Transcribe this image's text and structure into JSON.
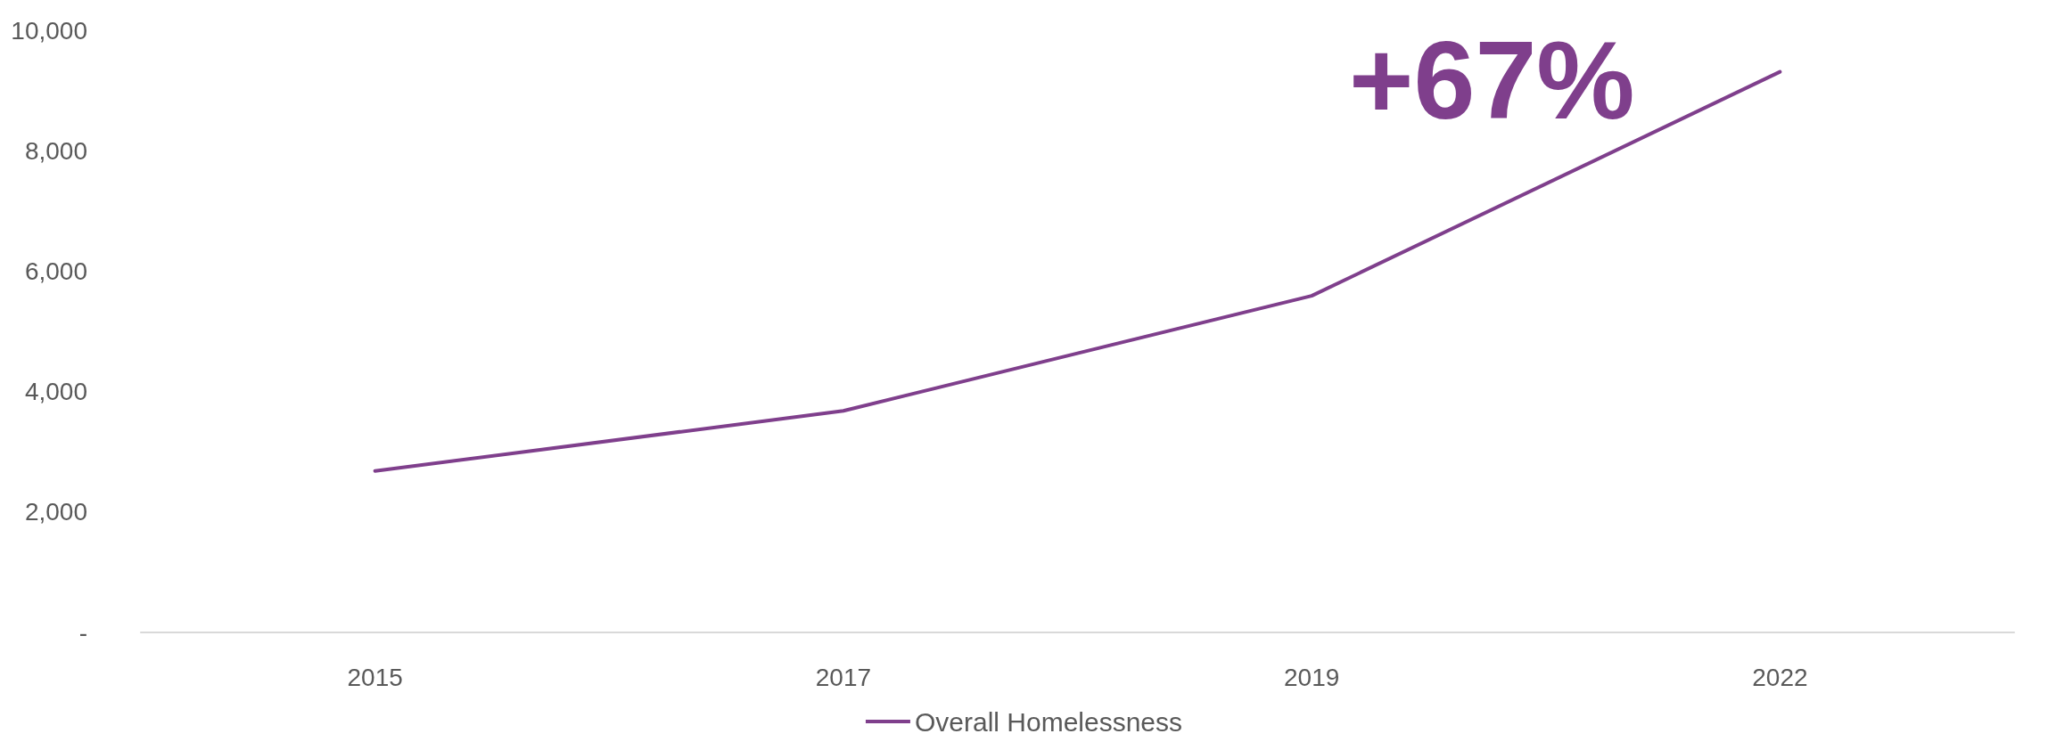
{
  "chart_data": {
    "type": "line",
    "categories": [
      "2015",
      "2017",
      "2019",
      "2022"
    ],
    "series": [
      {
        "name": "Overall Homelessness",
        "color": "#7f3f8c",
        "values": [
          2680,
          3680,
          5590,
          9310
        ]
      }
    ],
    "ylim": [
      0,
      10000
    ],
    "yticks": [
      {
        "value": 0,
        "label": "-"
      },
      {
        "value": 2000,
        "label": "2,000"
      },
      {
        "value": 4000,
        "label": "4,000"
      },
      {
        "value": 6000,
        "label": "6,000"
      },
      {
        "value": 8000,
        "label": "8,000"
      },
      {
        "value": 10000,
        "label": "10,000"
      }
    ],
    "annotations": [
      "+67%"
    ],
    "grid": false,
    "legend": "bottom",
    "marker": "none"
  }
}
